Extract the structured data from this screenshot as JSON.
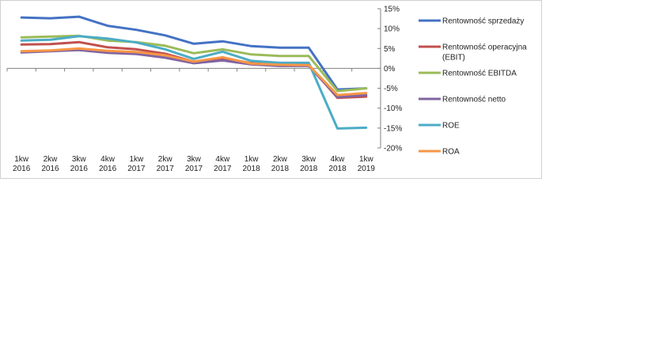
{
  "chart_data": {
    "type": "line",
    "title": "",
    "xlabel": "",
    "ylabel": "",
    "categories": [
      [
        "1kw",
        "2016"
      ],
      [
        "2kw",
        "2016"
      ],
      [
        "3kw",
        "2016"
      ],
      [
        "4kw",
        "2016"
      ],
      [
        "1kw",
        "2017"
      ],
      [
        "2kw",
        "2017"
      ],
      [
        "3kw",
        "2017"
      ],
      [
        "4kw",
        "2017"
      ],
      [
        "1kw",
        "2018"
      ],
      [
        "2kw",
        "2018"
      ],
      [
        "3kw",
        "2018"
      ],
      [
        "4kw",
        "2018"
      ],
      [
        "1kw",
        "2019"
      ]
    ],
    "ylim": [
      -20,
      15
    ],
    "yticks": [
      15,
      10,
      5,
      0,
      -5,
      -10,
      -15,
      -20
    ],
    "ytick_labels": [
      "15%",
      "10%",
      "5%",
      "0%",
      "-5%",
      "-10%",
      "-15%",
      "-20%"
    ],
    "y_axis_position": "right",
    "grid": false,
    "legend_position": "right",
    "series": [
      {
        "name": "Rentowność sprzedaży",
        "color": "#4472c4",
        "values": [
          12.8,
          12.6,
          13.0,
          10.7,
          9.7,
          8.3,
          6.2,
          6.8,
          5.6,
          5.2,
          5.2,
          -5.3,
          -5.0
        ]
      },
      {
        "name": "Rentowność operacyjna (EBIT)",
        "color": "#c0504d",
        "values": [
          6.0,
          6.1,
          6.6,
          5.3,
          4.8,
          3.7,
          1.7,
          2.6,
          1.3,
          0.9,
          0.9,
          -7.4,
          -7.1
        ]
      },
      {
        "name": "Rentowność EBITDA",
        "color": "#9bbb59",
        "values": [
          7.8,
          8.0,
          8.2,
          7.0,
          6.6,
          5.7,
          3.8,
          4.8,
          3.5,
          3.1,
          3.1,
          -5.7,
          -5.0
        ]
      },
      {
        "name": "Rentowność netto",
        "color": "#8064a2",
        "values": [
          4.0,
          4.3,
          4.6,
          3.9,
          3.6,
          2.7,
          1.3,
          2.0,
          1.0,
          0.6,
          0.6,
          -7.2,
          -6.7
        ]
      },
      {
        "name": "ROE",
        "color": "#4bacc6",
        "values": [
          7.0,
          7.2,
          8.1,
          7.5,
          6.5,
          4.8,
          2.4,
          4.2,
          1.9,
          1.4,
          1.4,
          -15.1,
          -14.9
        ]
      },
      {
        "name": "ROA",
        "color": "#f79646",
        "values": [
          4.3,
          4.5,
          5.0,
          4.4,
          4.1,
          3.3,
          1.7,
          2.8,
          1.2,
          0.9,
          0.8,
          -6.7,
          -6.2
        ]
      }
    ]
  }
}
